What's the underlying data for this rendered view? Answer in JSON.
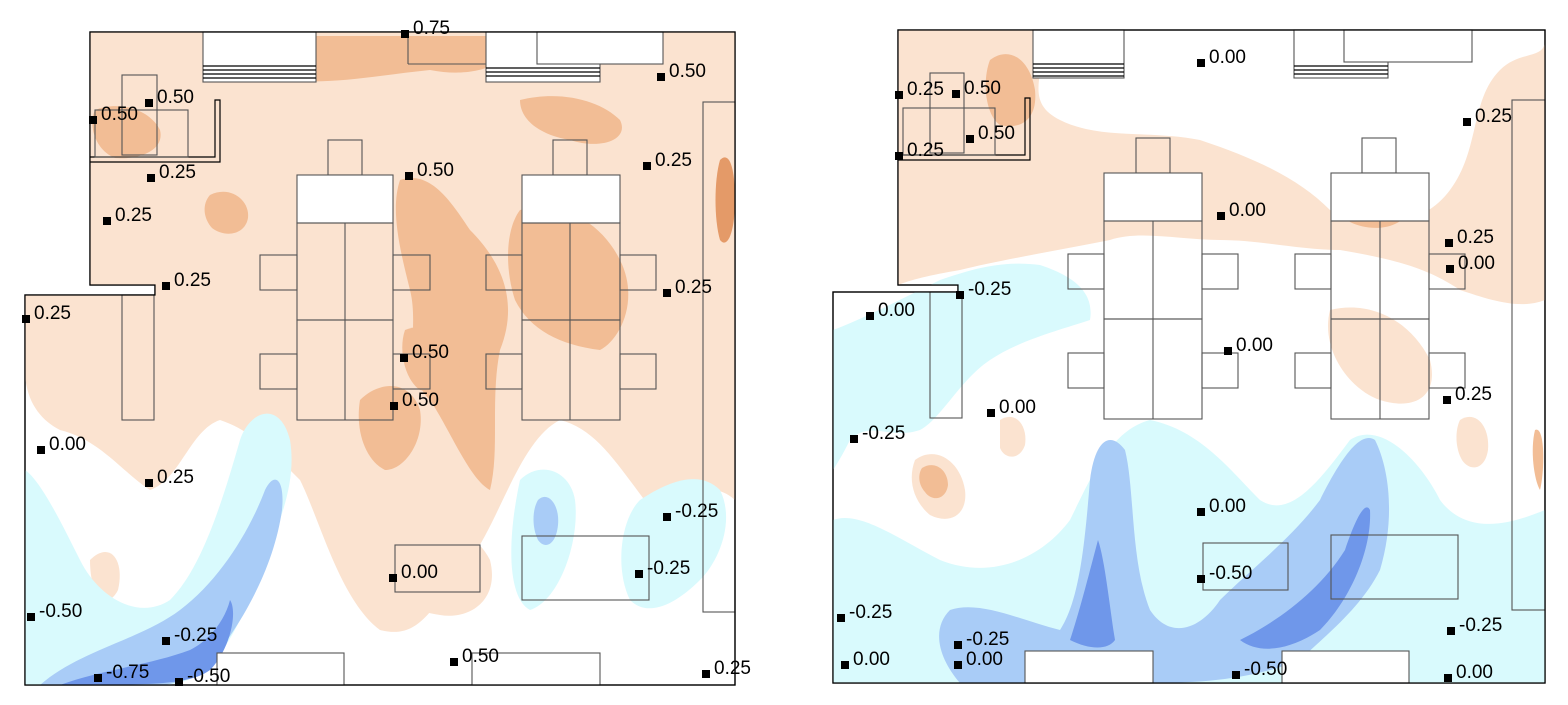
{
  "colors": {
    "warm_light": "#fbe3d0",
    "warm_mid": "#f2bd95",
    "warm_dark": "#e49a68",
    "cool_light": "#d9fafd",
    "cool_mid": "#a9ccf7",
    "cool_dark": "#6f97ea"
  },
  "panels": [
    {
      "name": "left-plan",
      "probes": [
        {
          "label": "0.75"
        },
        {
          "label": "0.50"
        },
        {
          "label": "0.50"
        },
        {
          "label": "0.50"
        },
        {
          "label": "0.25"
        },
        {
          "label": "0.50"
        },
        {
          "label": "0.25"
        },
        {
          "label": "0.25"
        },
        {
          "label": "0.25"
        },
        {
          "label": "0.25"
        },
        {
          "label": "0.25"
        },
        {
          "label": "0.50"
        },
        {
          "label": "0.50"
        },
        {
          "label": "0.00"
        },
        {
          "label": "0.25"
        },
        {
          "label": "-0.25"
        },
        {
          "label": "0.00"
        },
        {
          "label": "-0.25"
        },
        {
          "label": "-0.50"
        },
        {
          "label": "-0.25"
        },
        {
          "label": "-0.75"
        },
        {
          "label": "-0.50"
        },
        {
          "label": "0.50"
        },
        {
          "label": "0.25"
        }
      ]
    },
    {
      "name": "right-plan",
      "probes": [
        {
          "label": "0.00"
        },
        {
          "label": "0.25"
        },
        {
          "label": "0.50"
        },
        {
          "label": "0.25"
        },
        {
          "label": "0.50"
        },
        {
          "label": "0.25"
        },
        {
          "label": "0.00"
        },
        {
          "label": "0.25"
        },
        {
          "label": "0.00"
        },
        {
          "label": "-0.25"
        },
        {
          "label": "0.00"
        },
        {
          "label": "0.00"
        },
        {
          "label": "0.25"
        },
        {
          "label": "0.00"
        },
        {
          "label": "-0.25"
        },
        {
          "label": "0.00"
        },
        {
          "label": "-0.50"
        },
        {
          "label": "-0.25"
        },
        {
          "label": "-0.25"
        },
        {
          "label": "-0.25"
        },
        {
          "label": "0.00"
        },
        {
          "label": "0.00"
        },
        {
          "label": "-0.50"
        },
        {
          "label": "0.00"
        }
      ]
    }
  ]
}
